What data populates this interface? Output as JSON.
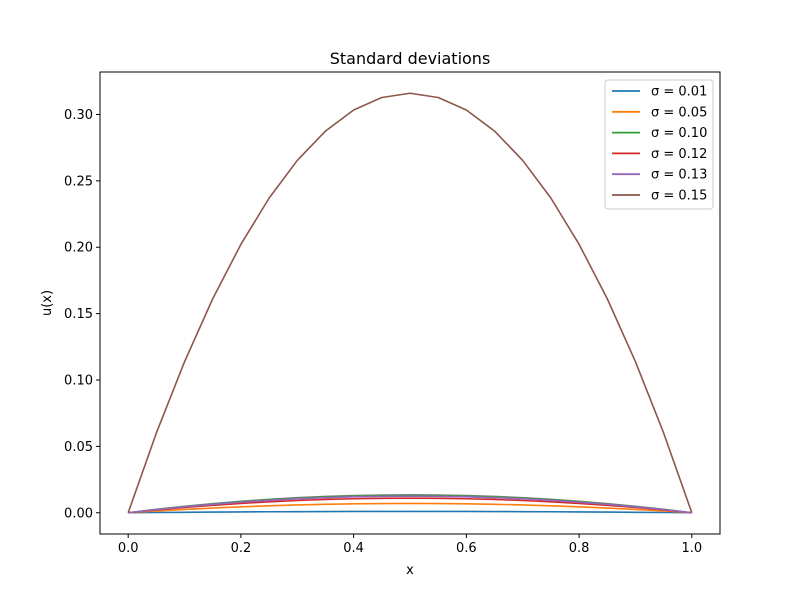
{
  "chart_data": {
    "type": "line",
    "title": "Standard deviations",
    "xlabel": "x",
    "ylabel": "u(x)",
    "xlim": [
      -0.05,
      1.05
    ],
    "ylim": [
      -0.016,
      0.332
    ],
    "xticks": [
      0.0,
      0.2,
      0.4,
      0.6,
      0.8,
      1.0
    ],
    "xtick_labels": [
      "0.0",
      "0.2",
      "0.4",
      "0.6",
      "0.8",
      "1.0"
    ],
    "yticks": [
      0.0,
      0.05,
      0.1,
      0.15,
      0.2,
      0.25,
      0.3
    ],
    "ytick_labels": [
      "0.00",
      "0.05",
      "0.10",
      "0.15",
      "0.20",
      "0.25",
      "0.30"
    ],
    "grid": false,
    "legend_position": "top-right",
    "x": [
      0.0,
      0.05,
      0.1,
      0.15,
      0.2,
      0.25,
      0.3,
      0.35,
      0.4,
      0.45,
      0.5,
      0.55,
      0.6,
      0.65,
      0.7,
      0.75,
      0.8,
      0.85,
      0.9,
      0.95,
      1.0
    ],
    "series": [
      {
        "name": "σ = 0.01",
        "color": "#1f77b4",
        "values": [
          0.0,
          0.00019,
          0.00036,
          0.00051,
          0.00064,
          0.00075,
          0.00084,
          0.00091,
          0.00096,
          0.00099,
          0.001,
          0.00099,
          0.00096,
          0.00091,
          0.00084,
          0.00075,
          0.00064,
          0.00051,
          0.00036,
          0.00019,
          0.0
        ]
      },
      {
        "name": "σ = 0.05",
        "color": "#ff7f0e",
        "values": [
          0.0,
          0.00133,
          0.00252,
          0.00357,
          0.00448,
          0.00525,
          0.00588,
          0.00637,
          0.00672,
          0.00693,
          0.007,
          0.00693,
          0.00672,
          0.00637,
          0.00588,
          0.00525,
          0.00448,
          0.00357,
          0.00252,
          0.00133,
          0.0
        ]
      },
      {
        "name": "σ = 0.10",
        "color": "#2ca02c",
        "values": [
          0.0,
          0.00247,
          0.00468,
          0.00663,
          0.00832,
          0.00975,
          0.01092,
          0.01183,
          0.01248,
          0.01287,
          0.013,
          0.01287,
          0.01248,
          0.01183,
          0.01092,
          0.00975,
          0.00832,
          0.00663,
          0.00468,
          0.00247,
          0.0
        ]
      },
      {
        "name": "σ = 0.12",
        "color": "#d62728",
        "values": [
          0.0,
          0.00209,
          0.00396,
          0.00561,
          0.00704,
          0.00825,
          0.00924,
          0.01001,
          0.01056,
          0.01089,
          0.011,
          0.01089,
          0.01056,
          0.01001,
          0.00924,
          0.00825,
          0.00704,
          0.00561,
          0.00396,
          0.00209,
          0.0
        ]
      },
      {
        "name": "σ = 0.13",
        "color": "#9467bd",
        "values": [
          0.0,
          0.00238,
          0.0045,
          0.00638,
          0.008,
          0.00938,
          0.0105,
          0.01138,
          0.012,
          0.01238,
          0.0125,
          0.01238,
          0.012,
          0.01138,
          0.0105,
          0.00938,
          0.008,
          0.00638,
          0.0045,
          0.00238,
          0.0
        ]
      },
      {
        "name": "σ = 0.15",
        "color": "#8c564b",
        "values": [
          0.0,
          0.0601,
          0.1138,
          0.1612,
          0.2022,
          0.237,
          0.2654,
          0.2875,
          0.3034,
          0.3128,
          0.316,
          0.3128,
          0.3034,
          0.2875,
          0.2654,
          0.237,
          0.2022,
          0.1612,
          0.1138,
          0.0601,
          0.0
        ]
      }
    ],
    "smooth_series": [
      {
        "name": "",
        "color": "#7f7f7f",
        "values": [
          0.0,
          0.00257,
          0.00486,
          0.00689,
          0.00864,
          0.01013,
          0.01134,
          0.01229,
          0.01296,
          0.01337,
          0.0135,
          0.01337,
          0.01296,
          0.01229,
          0.01134,
          0.01013,
          0.00864,
          0.00689,
          0.00486,
          0.00257,
          0.0
        ]
      }
    ]
  }
}
